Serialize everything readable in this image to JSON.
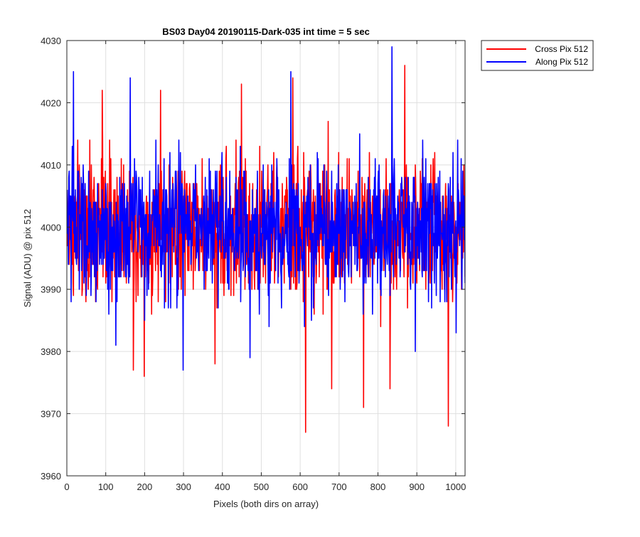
{
  "chart_data": {
    "type": "line",
    "title": "BS03 Day04 20190115-Dark-035 int time = 5 sec",
    "xlabel": "Pixels (both dirs on array)",
    "ylabel": "Signal (ADU) @ pix 512",
    "xlim": [
      0,
      1024
    ],
    "ylim": [
      3960,
      4030
    ],
    "xticks": [
      0,
      100,
      200,
      300,
      400,
      500,
      600,
      700,
      800,
      900,
      1000
    ],
    "yticks": [
      3960,
      3970,
      3980,
      3990,
      4000,
      4010,
      4020,
      4030
    ],
    "grid": true,
    "legend_position": "outside-top-right",
    "series": [
      {
        "name": "Cross Pix 512",
        "color": "#ff0000",
        "mean": 4000,
        "std": 6,
        "n_points": 1024,
        "notable_points": [
          {
            "x": 90,
            "y": 4022
          },
          {
            "x": 170,
            "y": 3977
          },
          {
            "x": 198,
            "y": 3976
          },
          {
            "x": 240,
            "y": 4022
          },
          {
            "x": 380,
            "y": 3978
          },
          {
            "x": 448,
            "y": 4023
          },
          {
            "x": 580,
            "y": 4024
          },
          {
            "x": 613,
            "y": 3967
          },
          {
            "x": 680,
            "y": 3974
          },
          {
            "x": 762,
            "y": 3971
          },
          {
            "x": 830,
            "y": 3974
          },
          {
            "x": 868,
            "y": 4026
          },
          {
            "x": 980,
            "y": 3968
          }
        ]
      },
      {
        "name": "Along Pix 512",
        "color": "#0000ff",
        "mean": 4000,
        "std": 5.5,
        "n_points": 1024,
        "notable_points": [
          {
            "x": 16,
            "y": 4025
          },
          {
            "x": 125,
            "y": 3981
          },
          {
            "x": 162,
            "y": 4024
          },
          {
            "x": 298,
            "y": 3977
          },
          {
            "x": 470,
            "y": 3979
          },
          {
            "x": 575,
            "y": 4025
          },
          {
            "x": 835,
            "y": 4029
          },
          {
            "x": 895,
            "y": 3980
          },
          {
            "x": 1000,
            "y": 3983
          }
        ]
      }
    ]
  }
}
